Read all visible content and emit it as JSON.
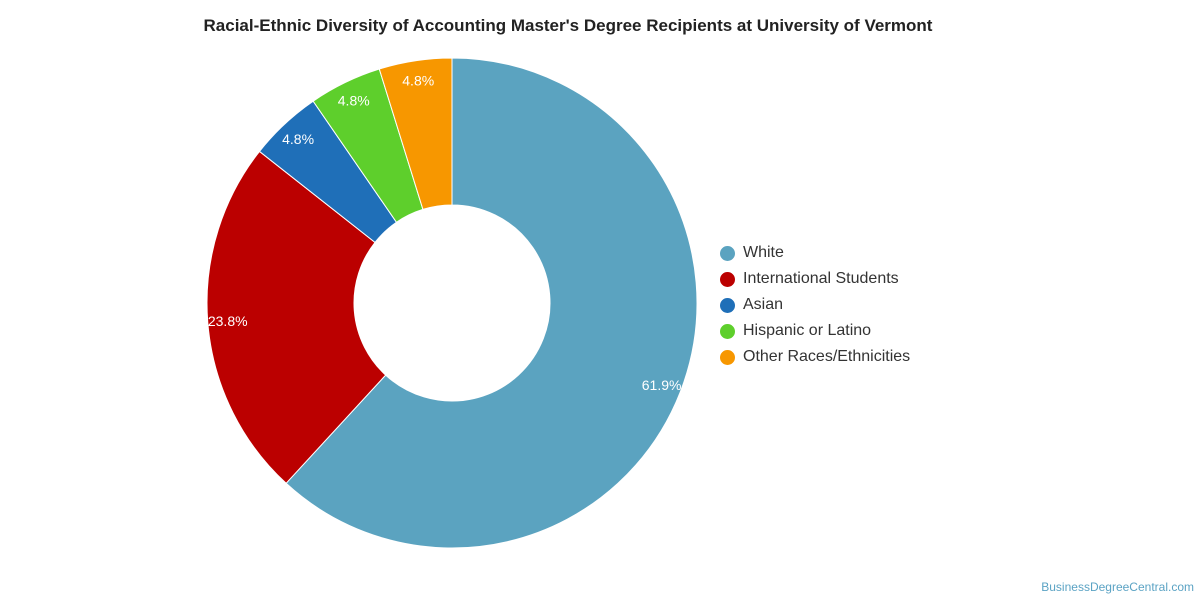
{
  "chart_data": {
    "type": "pie",
    "title": "Racial-Ethnic Diversity of Accounting Master's Degree Recipients at University of Vermont",
    "donut": true,
    "slices": [
      {
        "label": "White",
        "value": 61.9,
        "display": "61.9%",
        "color": "#5ba3c0"
      },
      {
        "label": "International Students",
        "value": 23.8,
        "display": "23.8%",
        "color": "#bb0000"
      },
      {
        "label": "Asian",
        "value": 4.8,
        "display": "4.8%",
        "color": "#1f6fb8"
      },
      {
        "label": "Hispanic or Latino",
        "value": 4.8,
        "display": "4.8%",
        "color": "#5ecf2c"
      },
      {
        "label": "Other Races/Ethnicities",
        "value": 4.8,
        "display": "4.8%",
        "color": "#f79700"
      }
    ],
    "legend_position": "right"
  },
  "credit": "BusinessDegreeCentral.com"
}
